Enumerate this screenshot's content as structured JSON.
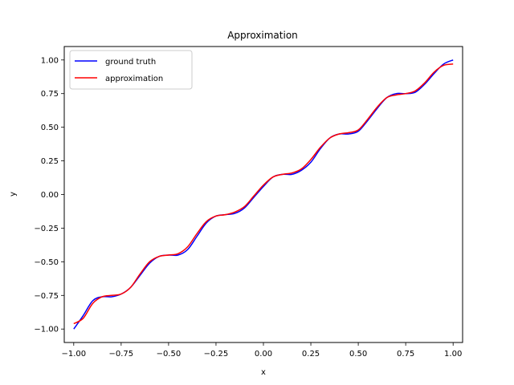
{
  "chart_data": {
    "type": "line",
    "title": "Approximation",
    "xlabel": "x",
    "ylabel": "y",
    "xlim": [
      -1.05,
      1.05
    ],
    "ylim": [
      -1.1,
      1.1
    ],
    "xticks": [
      -1.0,
      -0.75,
      -0.5,
      -0.25,
      0.0,
      0.25,
      0.5,
      0.75,
      1.0
    ],
    "xtick_labels": [
      "−1.00",
      "−0.75",
      "−0.50",
      "−0.25",
      "0.00",
      "0.25",
      "0.50",
      "0.75",
      "1.00"
    ],
    "yticks": [
      -1.0,
      -0.75,
      -0.5,
      -0.25,
      0.0,
      0.25,
      0.5,
      0.75,
      1.0
    ],
    "ytick_labels": [
      "−1.00",
      "−0.75",
      "−0.50",
      "−0.25",
      "0.00",
      "0.25",
      "0.50",
      "0.75",
      "1.00"
    ],
    "grid": false,
    "legend_position": "top-left",
    "series": [
      {
        "name": "ground truth",
        "color": "#0000ff",
        "x": [
          -1.0,
          -0.95,
          -0.9,
          -0.85,
          -0.8,
          -0.75,
          -0.7,
          -0.65,
          -0.6,
          -0.55,
          -0.5,
          -0.45,
          -0.4,
          -0.35,
          -0.3,
          -0.25,
          -0.2,
          -0.15,
          -0.1,
          -0.05,
          0.0,
          0.05,
          0.1,
          0.15,
          0.2,
          0.25,
          0.3,
          0.35,
          0.4,
          0.45,
          0.5,
          0.55,
          0.6,
          0.65,
          0.7,
          0.75,
          0.8,
          0.85,
          0.9,
          0.95,
          1.0
        ],
        "y": [
          -1.0,
          -0.9,
          -0.79,
          -0.76,
          -0.76,
          -0.74,
          -0.69,
          -0.6,
          -0.51,
          -0.46,
          -0.45,
          -0.45,
          -0.41,
          -0.31,
          -0.21,
          -0.16,
          -0.15,
          -0.14,
          -0.1,
          -0.02,
          0.06,
          0.13,
          0.15,
          0.15,
          0.18,
          0.24,
          0.34,
          0.42,
          0.45,
          0.45,
          0.47,
          0.55,
          0.64,
          0.72,
          0.75,
          0.75,
          0.76,
          0.82,
          0.9,
          0.97,
          1.0
        ]
      },
      {
        "name": "approximation",
        "color": "#ff0000",
        "x": [
          -1.0,
          -0.95,
          -0.9,
          -0.85,
          -0.8,
          -0.75,
          -0.7,
          -0.65,
          -0.6,
          -0.55,
          -0.5,
          -0.45,
          -0.4,
          -0.35,
          -0.3,
          -0.25,
          -0.2,
          -0.15,
          -0.1,
          -0.05,
          0.0,
          0.05,
          0.1,
          0.15,
          0.2,
          0.25,
          0.3,
          0.35,
          0.4,
          0.45,
          0.5,
          0.55,
          0.6,
          0.65,
          0.7,
          0.75,
          0.8,
          0.85,
          0.9,
          0.95,
          1.0
        ],
        "y": [
          -0.96,
          -0.92,
          -0.81,
          -0.76,
          -0.75,
          -0.74,
          -0.69,
          -0.59,
          -0.5,
          -0.46,
          -0.45,
          -0.44,
          -0.39,
          -0.29,
          -0.2,
          -0.16,
          -0.15,
          -0.13,
          -0.09,
          -0.01,
          0.07,
          0.13,
          0.15,
          0.16,
          0.19,
          0.26,
          0.35,
          0.42,
          0.45,
          0.46,
          0.48,
          0.56,
          0.65,
          0.72,
          0.74,
          0.75,
          0.77,
          0.83,
          0.91,
          0.96,
          0.97
        ]
      }
    ]
  }
}
